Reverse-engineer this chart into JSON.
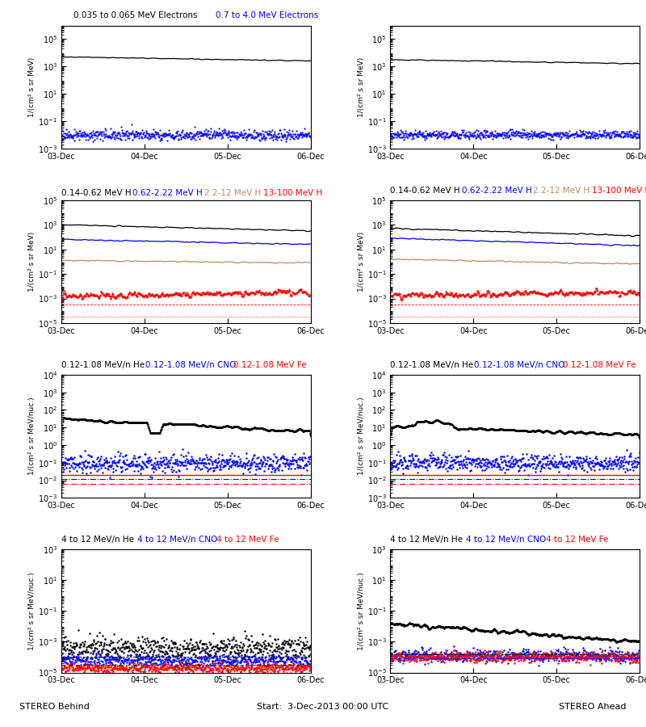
{
  "row1_title_left": "0.035 to 0.065 MeV Electrons",
  "row1_title_right": "0.7 to 4.0 MeV Electrons",
  "row1_title_right_color": "#0000FF",
  "row2_labels": [
    "0.14-0.62 MeV H",
    "0.62-2.22 MeV H",
    "2.2-12 MeV H",
    "13-100 MeV H"
  ],
  "row2_colors": [
    "#000000",
    "#0000FF",
    "#BC8F5F",
    "#FF0000"
  ],
  "row3_labels": [
    "0.12-1.08 MeV/n He",
    "0.12-1.08 MeV/n CNO",
    "0.12-1.08 MeV Fe"
  ],
  "row3_colors": [
    "#000000",
    "#0000FF",
    "#FF0000"
  ],
  "row4_labels": [
    "4 to 12 MeV/n He",
    "4 to 12 MeV/n CNO",
    "4 to 12 MeV Fe"
  ],
  "row4_colors": [
    "#000000",
    "#0000FF",
    "#FF0000"
  ],
  "xlabel_left": "STEREO Behind",
  "xlabel_center": "Start:  3-Dec-2013 00:00 UTC",
  "xlabel_right": "STEREO Ahead",
  "xtick_labels": [
    "03-Dec",
    "04-Dec",
    "05-Dec",
    "06-Dec"
  ],
  "ylabel_MeV": "1/{cm² s sr MeV}",
  "ylabel_MeVnuc": "1/{cm² s sr MeV/nuc.}",
  "bg_color": "#FFFFFF",
  "c_black": "#000000",
  "c_blue": "#0000FF",
  "c_brown": "#BC8F5F",
  "c_red": "#FF0000"
}
